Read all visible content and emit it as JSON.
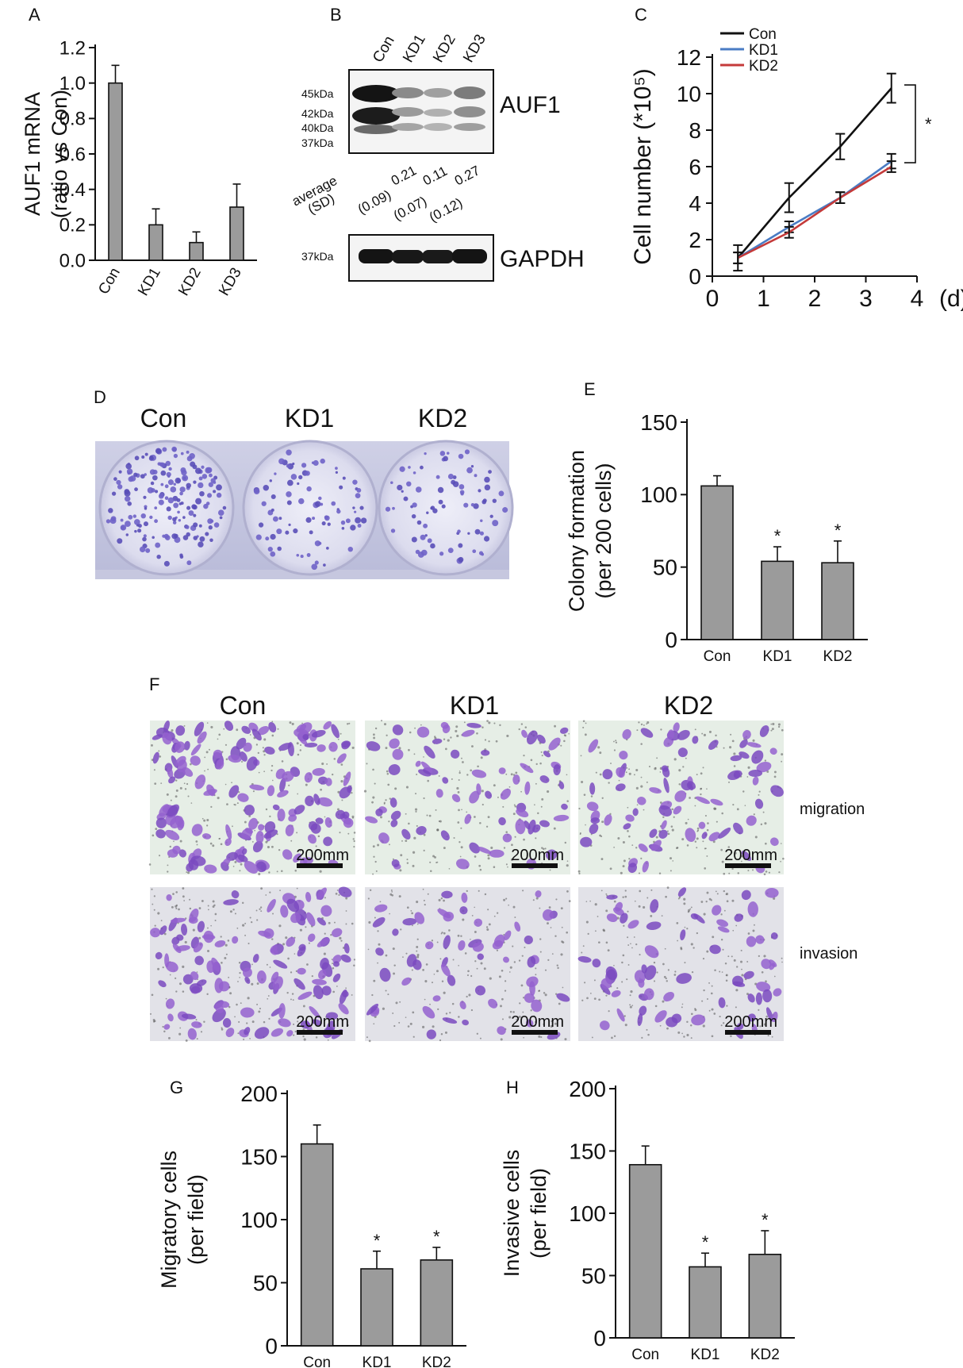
{
  "panels": {
    "A": {
      "letter": "A"
    },
    "B": {
      "letter": "B"
    },
    "C": {
      "letter": "C"
    },
    "D": {
      "letter": "D"
    },
    "E": {
      "letter": "E"
    },
    "F": {
      "letter": "F"
    },
    "G": {
      "letter": "G"
    },
    "H": {
      "letter": "H"
    }
  },
  "blot": {
    "lanes": [
      "Con",
      "KD1",
      "KD2",
      "KD3"
    ],
    "markers_top": [
      "45kDa",
      "42kDa",
      "40kDa",
      "37kDa"
    ],
    "marker_bottom": "37kDa",
    "protein_top": "AUF1",
    "protein_bottom": "GAPDH",
    "average_label": "average",
    "sd_label": "(SD)",
    "averages": [
      "0.21",
      "0.11",
      "0.27"
    ],
    "sds": [
      "(0.09)",
      "(0.07)",
      "(0.12)"
    ]
  },
  "dish_labels": [
    "Con",
    "KD1",
    "KD2"
  ],
  "micro": {
    "columns": [
      "Con",
      "KD1",
      "KD2"
    ],
    "rows": [
      "migration",
      "invasion"
    ],
    "scalebar": "200mm"
  },
  "chart_data": [
    {
      "panel": "A",
      "type": "bar",
      "ylabel": [
        "AUF1 mRNA",
        "(ratio vs Con)"
      ],
      "categories": [
        "Con",
        "KD1",
        "KD2",
        "KD3"
      ],
      "values": [
        1.0,
        0.2,
        0.1,
        0.3
      ],
      "errors": [
        0.1,
        0.09,
        0.06,
        0.13
      ],
      "ylim": [
        0,
        1.2
      ],
      "yticks": [
        "0.0",
        "0.2",
        "0.4",
        "0.6",
        "0.8",
        "1.0",
        "1.2"
      ],
      "bar_color": "#9b9b9b"
    },
    {
      "panel": "C",
      "type": "line",
      "ylabel": "Cell number (*10⁵)",
      "xunit": "(d)",
      "xlim": [
        0,
        4
      ],
      "ylim": [
        0,
        12
      ],
      "xticks": [
        "0",
        "1",
        "2",
        "3",
        "4"
      ],
      "yticks": [
        "0",
        "2",
        "4",
        "6",
        "8",
        "10",
        "12"
      ],
      "x": [
        0.5,
        1.5,
        2.5,
        3.5
      ],
      "series": [
        {
          "name": "Con",
          "color": "#111111",
          "values": [
            1.0,
            4.3,
            7.1,
            10.3
          ],
          "errors": [
            0.7,
            0.8,
            0.7,
            0.8
          ]
        },
        {
          "name": "KD1",
          "color": "#4a7cc4",
          "values": [
            1.0,
            2.7,
            4.3,
            6.3
          ],
          "errors": [
            0.3,
            0.3,
            0.3,
            0.4
          ]
        },
        {
          "name": "KD2",
          "color": "#c43a3a",
          "values": [
            1.0,
            2.4,
            4.3,
            6.0
          ],
          "errors": [
            0.3,
            0.3,
            0.3,
            0.3
          ]
        }
      ],
      "significance": "*"
    },
    {
      "panel": "E",
      "type": "bar",
      "ylabel": [
        "Colony formation",
        "(per 200 cells)"
      ],
      "categories": [
        "Con",
        "KD1",
        "KD2"
      ],
      "values": [
        106,
        54,
        53
      ],
      "errors": [
        7,
        10,
        15
      ],
      "ylim": [
        0,
        150
      ],
      "yticks": [
        "0",
        "50",
        "100",
        "150"
      ],
      "markers": [
        "",
        "*",
        "*"
      ],
      "bar_color": "#9b9b9b"
    },
    {
      "panel": "G",
      "type": "bar",
      "ylabel": [
        "Migratory cells",
        "(per field)"
      ],
      "categories": [
        "Con",
        "KD1",
        "KD2"
      ],
      "values": [
        160,
        61,
        68
      ],
      "errors": [
        15,
        14,
        10
      ],
      "ylim": [
        0,
        200
      ],
      "yticks": [
        "0",
        "50",
        "100",
        "150",
        "200"
      ],
      "markers": [
        "",
        "*",
        "*"
      ],
      "bar_color": "#9b9b9b"
    },
    {
      "panel": "H",
      "type": "bar",
      "ylabel": [
        "Invasive cells",
        "(per field)"
      ],
      "categories": [
        "Con",
        "KD1",
        "KD2"
      ],
      "values": [
        139,
        57,
        67
      ],
      "errors": [
        15,
        11,
        19
      ],
      "ylim": [
        0,
        200
      ],
      "yticks": [
        "0",
        "50",
        "100",
        "150",
        "200"
      ],
      "markers": [
        "",
        "*",
        "*"
      ],
      "bar_color": "#9b9b9b"
    }
  ]
}
